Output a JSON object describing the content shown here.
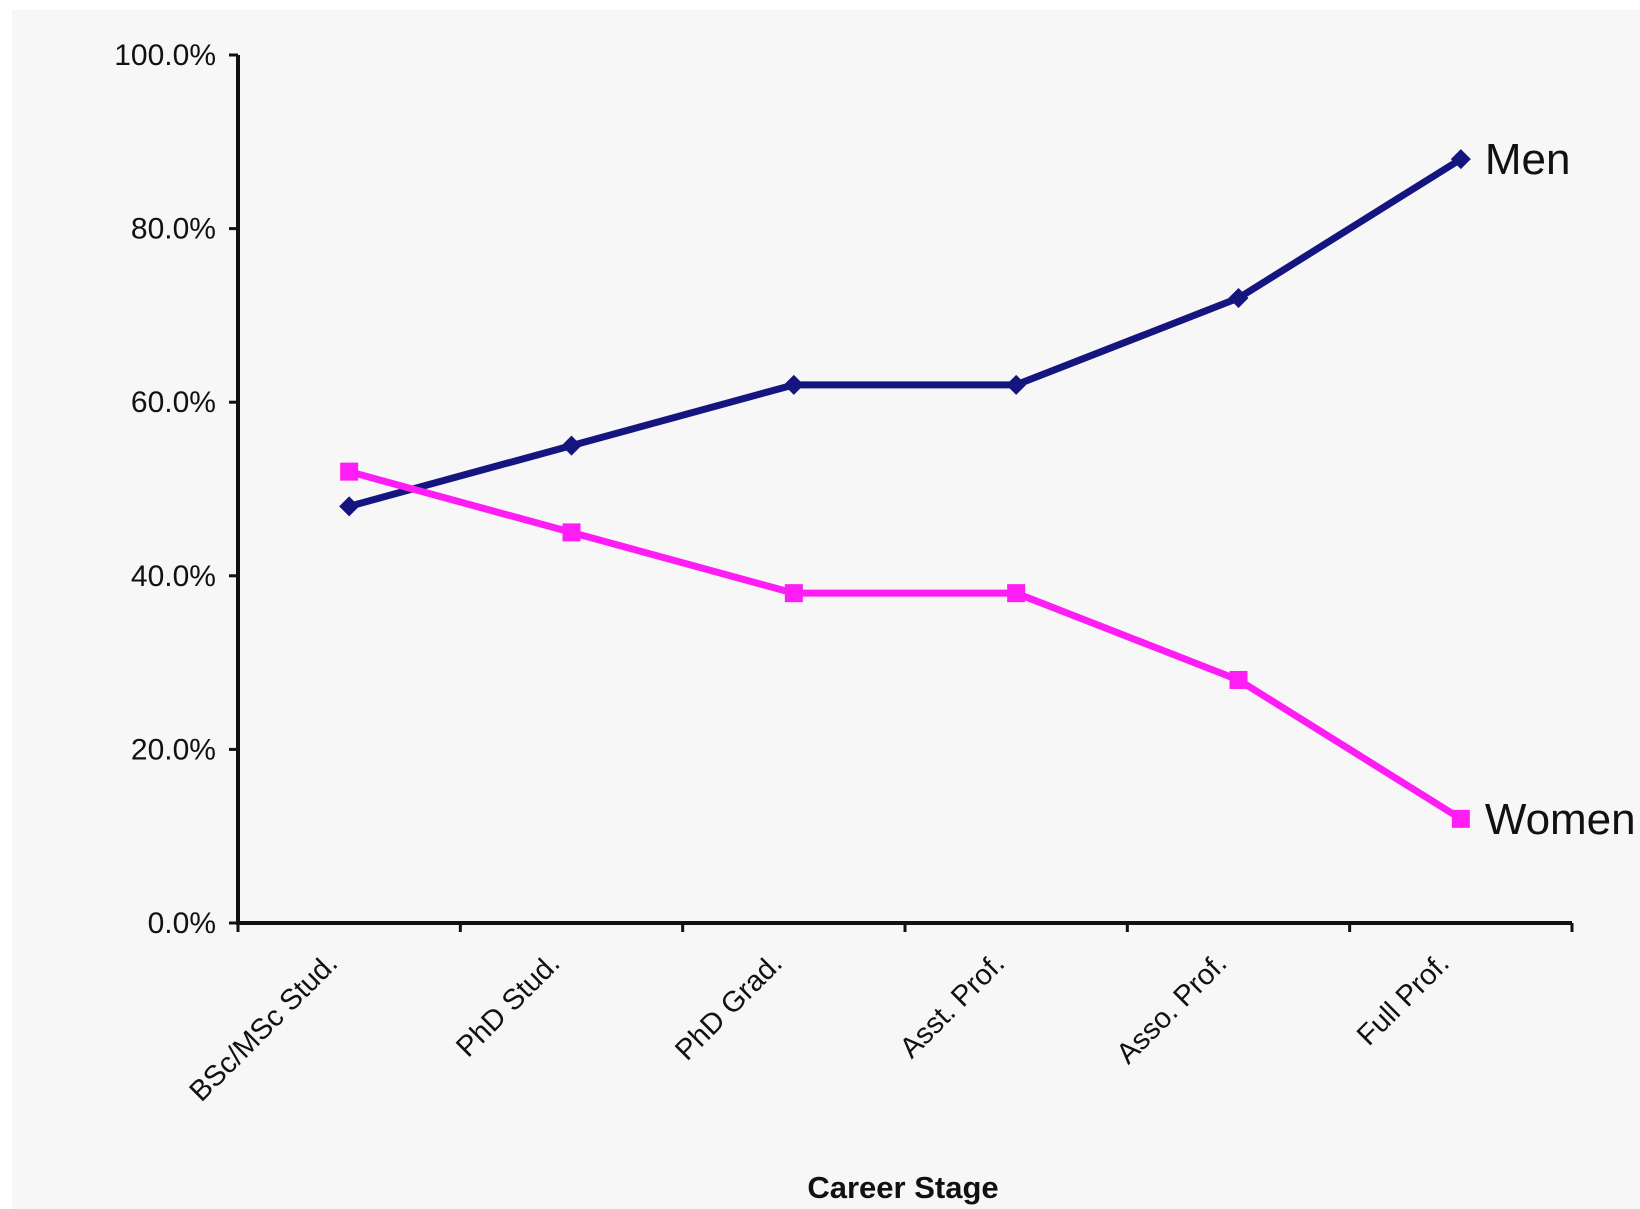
{
  "chart_data": {
    "type": "line",
    "title": "",
    "xlabel": "Career Stage",
    "ylabel": "",
    "categories": [
      "BSc/MSc Stud.",
      "PhD Stud.",
      "PhD Grad.",
      "Asst. Prof.",
      "Asso. Prof.",
      "Full Prof."
    ],
    "ylim": [
      0,
      100
    ],
    "yticks": [
      "0.0%",
      "20.0%",
      "40.0%",
      "60.0%",
      "80.0%",
      "100.0%"
    ],
    "grid": false,
    "legend": "inline labels at line ends",
    "series": [
      {
        "name": "Men",
        "values": [
          48,
          55,
          62,
          62,
          72,
          88
        ],
        "color": "#14157e",
        "marker": "diamond"
      },
      {
        "name": "Women",
        "values": [
          52,
          45,
          38,
          38,
          28,
          12
        ],
        "color": "#ff1df5",
        "marker": "square"
      }
    ]
  }
}
